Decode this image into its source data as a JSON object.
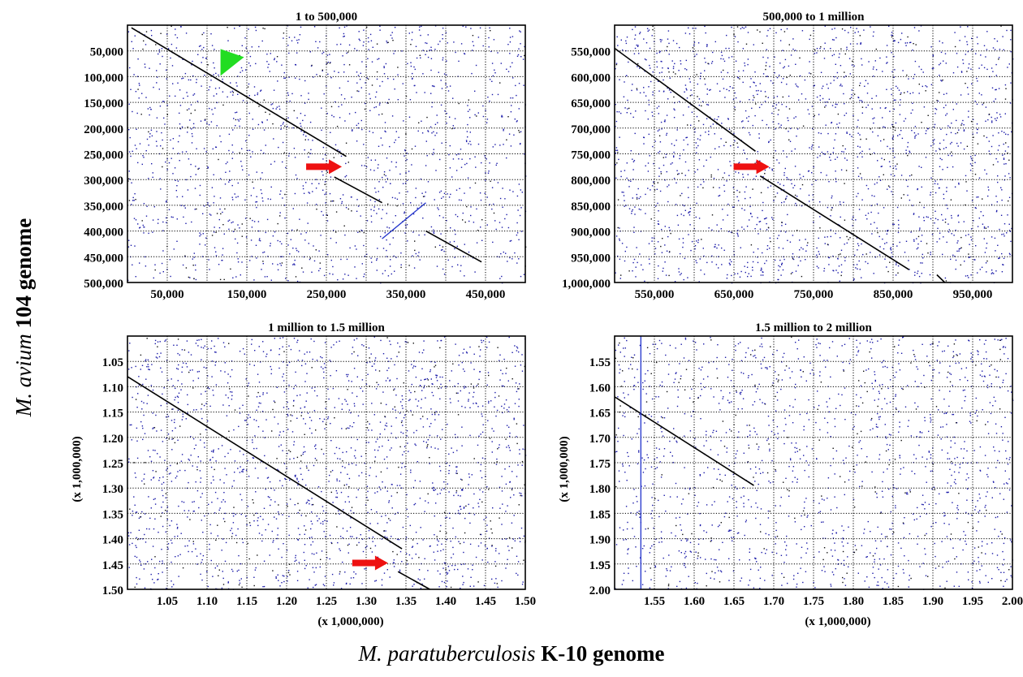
{
  "figure": {
    "y_axis_title": {
      "species": "M. avium",
      "strain": "104 genome"
    },
    "x_axis_title": {
      "species": "M. paratuberculosis",
      "strain": "K-10 genome"
    }
  },
  "colors": {
    "dots": "#1a1aa8",
    "dark_dots": "#111111",
    "diagonal": "#000000",
    "blue_line": "#2233cc",
    "red_arrow": "#ee1111",
    "green_arrowhead": "#22dd22",
    "grid": "#000000"
  },
  "chart_data": [
    {
      "type": "scatter",
      "title": "1 to 500,000",
      "xlabel": "",
      "ylabel": "",
      "xlim": [
        1,
        500000
      ],
      "ylim": [
        500000,
        1
      ],
      "x_ticks": [
        50000,
        150000,
        250000,
        350000,
        450000
      ],
      "x_tick_labels": [
        "50,000",
        "150,000",
        "250,000",
        "350,000",
        "450,000"
      ],
      "y_ticks": [
        50000,
        100000,
        150000,
        200000,
        250000,
        300000,
        350000,
        400000,
        450000,
        500000
      ],
      "y_tick_labels": [
        "50,000",
        "100,000",
        "150,000",
        "200,000",
        "250,000",
        "300,000",
        "350,000",
        "400,000",
        "450,000",
        "500,000"
      ],
      "grid_x": [
        1,
        50000,
        100000,
        150000,
        200000,
        250000,
        300000,
        350000,
        400000,
        450000
      ],
      "grid_y": [
        50000,
        100000,
        150000,
        200000,
        250000,
        300000,
        350000,
        400000,
        450000
      ],
      "grid": true,
      "noise_density": 1500,
      "alignments": [
        {
          "x": [
            5000,
            275000
          ],
          "y": [
            5000,
            255000
          ],
          "color": "diagonal"
        },
        {
          "x": [
            260000,
            320000
          ],
          "y": [
            295000,
            345000
          ],
          "color": "diagonal"
        },
        {
          "x": [
            320000,
            375000
          ],
          "y": [
            415000,
            345000
          ],
          "color": "blue_line"
        },
        {
          "x": [
            375000,
            445000
          ],
          "y": [
            400000,
            460000
          ],
          "color": "diagonal"
        }
      ],
      "markers": [
        {
          "kind": "red_arrow",
          "x": 247000,
          "y": 275000
        },
        {
          "kind": "green_arrowhead",
          "x": 120000,
          "y": 70000
        }
      ]
    },
    {
      "type": "scatter",
      "title": "500,000  to 1 million",
      "xlabel": "",
      "ylabel": "",
      "xlim": [
        500000,
        1000000
      ],
      "ylim": [
        1000000,
        500000
      ],
      "x_ticks": [
        550000,
        650000,
        750000,
        850000,
        950000
      ],
      "x_tick_labels": [
        "550,000",
        "650,000",
        "750,000",
        "850,000",
        "950,000"
      ],
      "y_ticks": [
        550000,
        600000,
        650000,
        700000,
        750000,
        800000,
        850000,
        900000,
        950000,
        1000000
      ],
      "y_tick_labels": [
        "550,000",
        "600,000",
        "650,000",
        "700,000",
        "750,000",
        "800,000",
        "850,000",
        "900,000",
        "950,000",
        "1,000,000"
      ],
      "grid_x": [
        550000,
        600000,
        650000,
        700000,
        750000,
        800000,
        850000,
        900000,
        950000
      ],
      "grid_y": [
        550000,
        600000,
        650000,
        700000,
        750000,
        800000,
        850000,
        900000,
        950000
      ],
      "grid": true,
      "noise_density": 1900,
      "alignments": [
        {
          "x": [
            500000,
            677000
          ],
          "y": [
            545000,
            745000
          ],
          "color": "diagonal"
        },
        {
          "x": [
            683000,
            870000
          ],
          "y": [
            793000,
            975000
          ],
          "color": "diagonal"
        },
        {
          "x": [
            905000,
            915000
          ],
          "y": [
            985000,
            1000000
          ],
          "color": "diagonal"
        }
      ],
      "markers": [
        {
          "kind": "red_arrow",
          "x": 672000,
          "y": 775000
        }
      ]
    },
    {
      "type": "scatter",
      "title": "1 million to 1.5 million",
      "xlabel": "(x 1,000,000)",
      "ylabel": "(x 1,000,000)",
      "xlim": [
        1.0,
        1.5
      ],
      "ylim": [
        1.5,
        1.0
      ],
      "x_ticks": [
        1.05,
        1.1,
        1.15,
        1.2,
        1.25,
        1.3,
        1.35,
        1.4,
        1.45,
        1.5
      ],
      "x_tick_labels": [
        "1.05",
        "1.10",
        "1.15",
        "1.20",
        "1.25",
        "1.30",
        "1.35",
        "1.40",
        "1.45",
        "1.50"
      ],
      "y_ticks": [
        1.05,
        1.1,
        1.15,
        1.2,
        1.25,
        1.3,
        1.35,
        1.4,
        1.45,
        1.5
      ],
      "y_tick_labels": [
        "1.05",
        "1.10",
        "1.15",
        "1.20",
        "1.25",
        "1.30",
        "1.35",
        "1.40",
        "1.45",
        "1.50"
      ],
      "grid_x": [
        1.05,
        1.1,
        1.15,
        1.2,
        1.25,
        1.3,
        1.35,
        1.4,
        1.45
      ],
      "grid_y": [
        1.05,
        1.1,
        1.15,
        1.2,
        1.25,
        1.3,
        1.35,
        1.4,
        1.45
      ],
      "grid": true,
      "noise_density": 1800,
      "alignments": [
        {
          "x": [
            1.0,
            1.345
          ],
          "y": [
            1.08,
            1.42
          ],
          "color": "diagonal"
        },
        {
          "x": [
            1.34,
            1.38
          ],
          "y": [
            1.465,
            1.5
          ],
          "color": "diagonal"
        }
      ],
      "markers": [
        {
          "kind": "red_arrow",
          "x": 1.305,
          "y": 1.448
        }
      ]
    },
    {
      "type": "scatter",
      "title": "1.5 million to 2 million",
      "xlabel": "(x 1,000,000)",
      "ylabel": "(x 1,000,000)",
      "xlim": [
        1.5,
        2.0
      ],
      "ylim": [
        2.0,
        1.5
      ],
      "x_ticks": [
        1.55,
        1.6,
        1.65,
        1.7,
        1.75,
        1.8,
        1.85,
        1.9,
        1.95,
        2.0
      ],
      "x_tick_labels": [
        "1.55",
        "1.60",
        "1.65",
        "1.70",
        "1.75",
        "1.80",
        "1.85",
        "1.90",
        "1.95",
        "2.00"
      ],
      "y_ticks": [
        1.55,
        1.6,
        1.65,
        1.7,
        1.75,
        1.8,
        1.85,
        1.9,
        1.95,
        2.0
      ],
      "y_tick_labels": [
        "1.55",
        "1.60",
        "1.65",
        "1.70",
        "1.75",
        "1.80",
        "1.85",
        "1.90",
        "1.95",
        "2.00"
      ],
      "grid_x": [
        1.55,
        1.6,
        1.65,
        1.7,
        1.75,
        1.8,
        1.85,
        1.9,
        1.95
      ],
      "grid_y": [
        1.55,
        1.6,
        1.65,
        1.7,
        1.75,
        1.8,
        1.85,
        1.9,
        1.95
      ],
      "grid": true,
      "noise_density": 1500,
      "alignments": [
        {
          "x": [
            1.5,
            1.675
          ],
          "y": [
            1.62,
            1.795
          ],
          "color": "diagonal"
        },
        {
          "x": [
            1.533,
            1.533
          ],
          "y": [
            1.5,
            2.0
          ],
          "color": "blue_line"
        }
      ],
      "markers": []
    }
  ]
}
